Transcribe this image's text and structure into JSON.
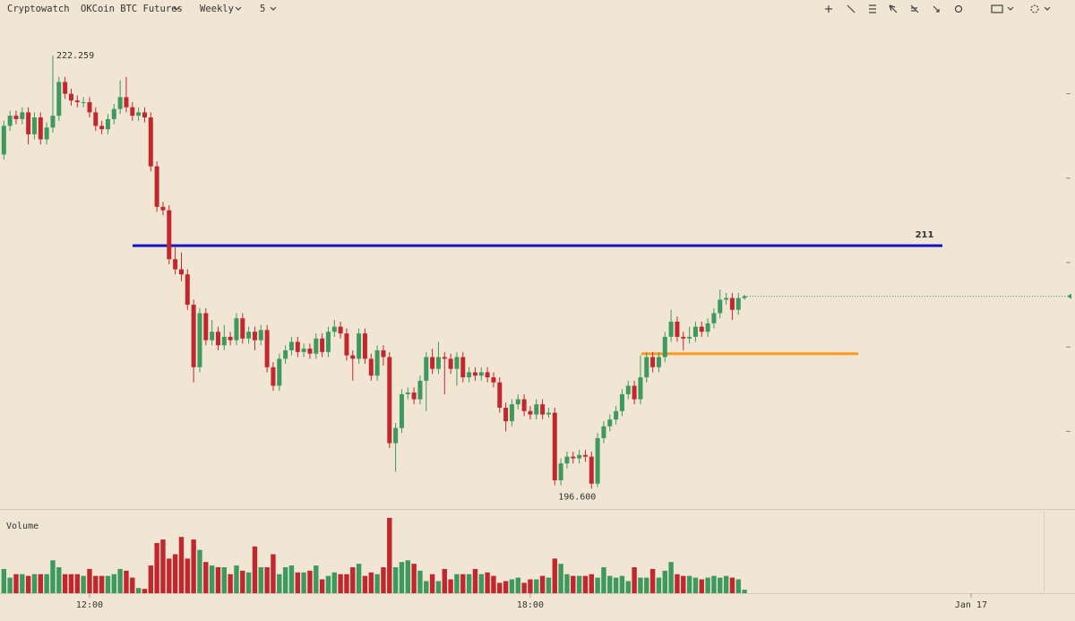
{
  "toolbar": {
    "brand": "Cryptowatch",
    "market": "OKCoin BTC Futures",
    "period": "Weekly",
    "interval": "5"
  },
  "chart_data": {
    "type": "candlestick",
    "categories": [
      null,
      null,
      null,
      null,
      null,
      null,
      null,
      null,
      null,
      null,
      null,
      null,
      null,
      null,
      null,
      null,
      null,
      null,
      null,
      null,
      null,
      null,
      null,
      null,
      null,
      null,
      null,
      null,
      null,
      null,
      null,
      null,
      null,
      null,
      null,
      null,
      null,
      null,
      null,
      null,
      null,
      null,
      null,
      null,
      null,
      null,
      null,
      null,
      null,
      null,
      null,
      null,
      null,
      null,
      null,
      null,
      null,
      null,
      null,
      null,
      null,
      null,
      null,
      null,
      null,
      null,
      null,
      null,
      null,
      null,
      null,
      null,
      null,
      null,
      null,
      null,
      null,
      null,
      null,
      null,
      null,
      null,
      null,
      null,
      null,
      null,
      null,
      null,
      null,
      null,
      null,
      null,
      null,
      null,
      null,
      null,
      null,
      null,
      null,
      null,
      null,
      null,
      null,
      null,
      null,
      null,
      null,
      null,
      null,
      null,
      null,
      null,
      null,
      null,
      null,
      null,
      null,
      null,
      null,
      null,
      null,
      null
    ],
    "open": [
      216.4,
      218.1,
      218.7,
      218.5,
      218.9,
      217.6,
      218.6,
      217.3,
      218.0,
      218.7,
      220.7,
      220.0,
      219.6,
      219.5,
      219.5,
      218.9,
      218.1,
      217.9,
      218.5,
      219.1,
      219.8,
      219.2,
      218.7,
      218.9,
      218.6,
      215.7,
      213.3,
      213.1,
      210.2,
      209.6,
      209.3,
      207.5,
      203.8,
      207.0,
      205.4,
      205.9,
      205.1,
      205.6,
      205.4,
      206.7,
      205.5,
      205.9,
      205.4,
      206.0,
      203.8,
      202.7,
      204.3,
      204.8,
      205.3,
      204.7,
      204.9,
      204.6,
      205.5,
      204.7,
      205.9,
      206.2,
      205.8,
      204.5,
      204.3,
      205.8,
      204.3,
      203.3,
      204.8,
      204.4,
      199.3,
      200.2,
      202.2,
      202.3,
      201.9,
      203.0,
      204.4,
      203.7,
      204.4,
      204.3,
      203.7,
      204.4,
      203.2,
      203.5,
      203.3,
      203.5,
      203.2,
      202.9,
      201.4,
      200.6,
      201.6,
      201.9,
      201.2,
      201.0,
      201.6,
      201.0,
      201.1,
      197.1,
      198.1,
      198.5,
      198.4,
      198.6,
      198.5,
      196.9,
      199.6,
      200.3,
      200.7,
      201.2,
      202.2,
      202.7,
      201.9,
      203.2,
      204.4,
      203.8,
      204.4,
      205.6,
      206.5,
      205.6,
      205.5,
      205.6,
      206.2,
      205.9,
      206.4,
      207.0,
      207.8,
      207.9,
      207.2,
      207.9
    ],
    "high": [
      218.4,
      219.0,
      219.0,
      219.2,
      219.2,
      218.9,
      218.9,
      218.3,
      222.259,
      221.0,
      221.0,
      220.3,
      219.9,
      219.8,
      219.8,
      219.2,
      218.4,
      218.8,
      219.4,
      220.8,
      221.0,
      219.5,
      219.2,
      219.2,
      218.9,
      216.0,
      213.6,
      213.4,
      211.0,
      210.6,
      209.6,
      207.8,
      207.3,
      207.3,
      206.6,
      206.2,
      206.3,
      205.9,
      207.0,
      207.0,
      206.2,
      206.2,
      206.3,
      206.3,
      204.1,
      204.6,
      205.1,
      205.6,
      205.6,
      205.2,
      205.2,
      205.8,
      205.8,
      206.2,
      206.6,
      206.5,
      206.1,
      204.8,
      206.1,
      206.1,
      204.6,
      205.1,
      205.1,
      204.7,
      200.5,
      202.5,
      202.6,
      202.6,
      203.3,
      204.7,
      204.9,
      205.3,
      204.7,
      204.6,
      204.7,
      204.7,
      203.8,
      203.8,
      203.8,
      203.8,
      203.5,
      203.2,
      201.7,
      201.9,
      202.2,
      202.2,
      201.5,
      201.9,
      201.9,
      201.4,
      201.4,
      198.4,
      198.8,
      198.8,
      198.9,
      198.9,
      198.8,
      199.9,
      200.6,
      201.0,
      201.5,
      202.5,
      203.0,
      203.0,
      204.5,
      204.7,
      204.7,
      204.7,
      205.9,
      207.2,
      206.8,
      205.9,
      206.2,
      206.5,
      206.5,
      206.7,
      207.3,
      208.4,
      208.2,
      208.2,
      208.2,
      208.1
    ],
    "low": [
      216.1,
      217.8,
      218.2,
      218.2,
      217.0,
      217.3,
      217.0,
      217.0,
      217.7,
      218.4,
      219.7,
      219.3,
      219.2,
      219.2,
      218.6,
      217.8,
      217.6,
      217.6,
      218.2,
      218.8,
      218.9,
      218.4,
      218.4,
      218.3,
      215.4,
      213.0,
      212.8,
      209.9,
      209.3,
      208.9,
      207.2,
      202.9,
      203.5,
      205.1,
      205.1,
      204.8,
      204.8,
      205.1,
      205.1,
      205.2,
      205.2,
      204.8,
      205.1,
      203.5,
      202.4,
      202.4,
      204.0,
      204.5,
      204.4,
      204.4,
      204.3,
      204.3,
      204.4,
      204.4,
      205.6,
      205.5,
      204.2,
      203.0,
      204.0,
      204.0,
      203.0,
      203.0,
      203.9,
      199.0,
      197.6,
      199.9,
      201.9,
      201.6,
      201.6,
      201.2,
      203.4,
      203.4,
      202.2,
      203.4,
      202.7,
      202.9,
      202.9,
      203.0,
      203.0,
      202.9,
      202.6,
      201.1,
      200.0,
      200.3,
      201.3,
      200.9,
      200.7,
      200.7,
      200.7,
      200.8,
      196.8,
      196.8,
      197.8,
      198.1,
      198.1,
      198.2,
      196.6,
      196.7,
      199.3,
      200.0,
      200.4,
      200.9,
      201.9,
      201.6,
      201.6,
      202.9,
      203.5,
      203.5,
      204.1,
      205.3,
      205.3,
      204.8,
      205.2,
      205.3,
      205.6,
      205.6,
      206.1,
      206.7,
      207.5,
      206.6,
      206.9,
      207.8
    ],
    "close": [
      218.1,
      218.7,
      218.5,
      218.9,
      217.6,
      218.6,
      217.3,
      218.0,
      218.7,
      220.7,
      220.0,
      219.6,
      219.5,
      219.5,
      218.9,
      218.1,
      217.9,
      218.5,
      219.1,
      219.8,
      219.2,
      218.7,
      218.9,
      218.6,
      215.7,
      213.3,
      213.1,
      210.2,
      209.6,
      209.3,
      207.5,
      203.8,
      207.0,
      205.4,
      205.9,
      205.1,
      205.6,
      205.4,
      206.7,
      205.5,
      205.9,
      205.4,
      206.0,
      203.8,
      202.7,
      204.3,
      204.8,
      205.3,
      204.7,
      204.9,
      204.6,
      205.5,
      204.7,
      205.9,
      206.2,
      205.8,
      204.5,
      204.3,
      205.8,
      204.3,
      203.3,
      204.8,
      204.4,
      199.3,
      200.2,
      202.2,
      202.3,
      201.9,
      203.0,
      204.4,
      203.7,
      204.4,
      204.3,
      203.7,
      204.4,
      203.2,
      203.5,
      203.3,
      203.5,
      203.2,
      202.9,
      201.4,
      200.6,
      201.6,
      201.9,
      201.2,
      201.0,
      201.6,
      201.0,
      201.1,
      197.1,
      198.1,
      198.5,
      198.4,
      198.6,
      198.5,
      196.9,
      199.6,
      200.3,
      200.7,
      201.2,
      202.2,
      202.7,
      201.9,
      203.2,
      204.4,
      203.8,
      204.4,
      205.6,
      206.5,
      205.6,
      205.5,
      205.6,
      206.2,
      205.9,
      206.4,
      207.0,
      207.8,
      207.9,
      207.2,
      207.9,
      208.0
    ],
    "up_color": "#3d9a5e",
    "down_color": "#c2272d",
    "ylim": [
      195.4,
      224.6
    ],
    "yticks": [
      200,
      205,
      210,
      215,
      220
    ],
    "xticks": [
      {
        "value": 14,
        "label": "12:00"
      },
      {
        "value": 86,
        "label": "18:00"
      },
      {
        "value": 158,
        "label": "Jan 17"
      }
    ],
    "annotations": [
      {
        "value": 222.259,
        "label": "222.259"
      },
      {
        "value": 196.6,
        "label": "196.600"
      }
    ],
    "lines": [
      {
        "value": 211,
        "label": "211",
        "color": "#1414c8"
      },
      {
        "value": 204.6,
        "color": "#ff9a1a"
      }
    ],
    "volume": {
      "title": "Volume",
      "ylim": [
        0,
        90
      ],
      "values": [
        28,
        18,
        22,
        22,
        20,
        22,
        22,
        22,
        38,
        30,
        22,
        22,
        22,
        20,
        28,
        20,
        20,
        20,
        22,
        28,
        26,
        18,
        6,
        5,
        32,
        58,
        62,
        40,
        45,
        65,
        40,
        62,
        50,
        36,
        32,
        30,
        30,
        22,
        32,
        26,
        24,
        54,
        30,
        30,
        45,
        22,
        30,
        32,
        24,
        24,
        26,
        32,
        16,
        20,
        24,
        22,
        22,
        30,
        34,
        20,
        24,
        22,
        30,
        87,
        30,
        36,
        38,
        34,
        26,
        14,
        22,
        14,
        28,
        16,
        22,
        22,
        22,
        28,
        22,
        24,
        20,
        12,
        14,
        16,
        18,
        12,
        16,
        16,
        20,
        18,
        40,
        34,
        22,
        20,
        20,
        20,
        22,
        18,
        30,
        20,
        18,
        20,
        14,
        30,
        18,
        18,
        28,
        18,
        26,
        36,
        22,
        20,
        20,
        18,
        16,
        18,
        20,
        18,
        20,
        18,
        16,
        4
      ]
    }
  }
}
